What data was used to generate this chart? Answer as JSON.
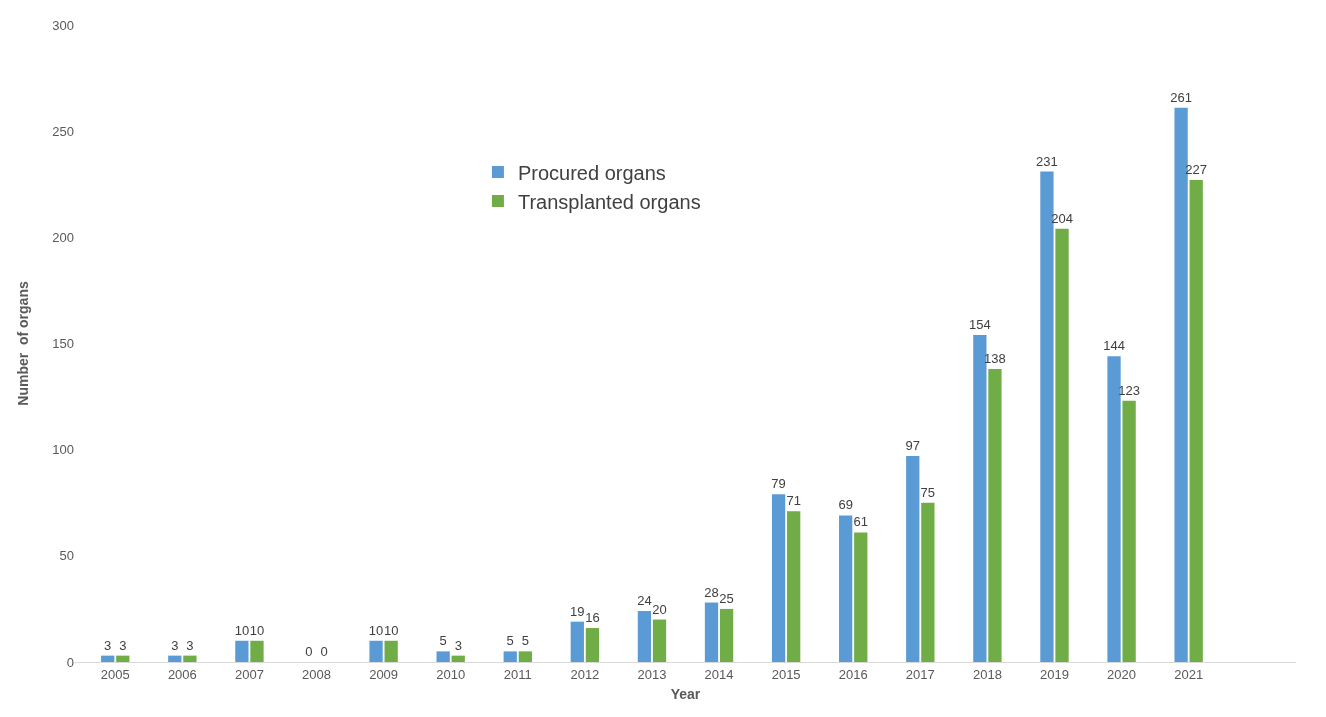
{
  "chart_data": {
    "type": "bar",
    "xlabel": "Year",
    "ylabel": "Number  of organs",
    "categories": [
      "2005",
      "2006",
      "2007",
      "2008",
      "2009",
      "2010",
      "2011",
      "2012",
      "2013",
      "2014",
      "2015",
      "2016",
      "2017",
      "2018",
      "2019",
      "2020",
      "2021"
    ],
    "series": [
      {
        "name": "Procured organs",
        "color": "#5b9bd5",
        "values": [
          3,
          3,
          10,
          0,
          10,
          5,
          5,
          19,
          24,
          28,
          79,
          69,
          97,
          154,
          231,
          144,
          261
        ]
      },
      {
        "name": "Transplanted organs",
        "color": "#70ad47",
        "values": [
          3,
          3,
          10,
          0,
          10,
          3,
          5,
          16,
          20,
          25,
          71,
          61,
          75,
          138,
          204,
          123,
          227
        ]
      }
    ],
    "ylim": [
      0,
      300
    ],
    "yticks": [
      0,
      50,
      100,
      150,
      200,
      250,
      300
    ],
    "legend": "top center",
    "data_labels": true
  }
}
